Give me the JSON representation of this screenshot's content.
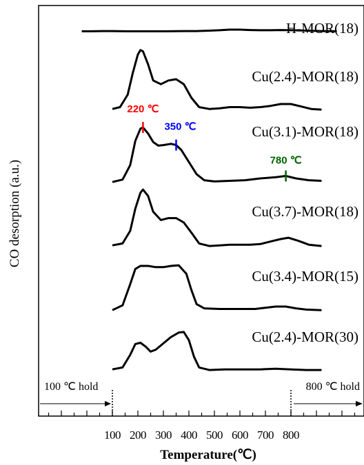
{
  "chart_data": {
    "type": "line",
    "title": "",
    "xlabel": "Temperature(℃)",
    "ylabel": "CO desorption (a.u.)",
    "x_ticks": [
      "100",
      "200",
      "300",
      "400",
      "500",
      "600",
      "700",
      "800"
    ],
    "y_ticks": [],
    "grid": false,
    "legend": "none",
    "series": [
      {
        "name": "H-MOR(18)",
        "color": "#000000",
        "points": [
          [
            -20,
            0.02
          ],
          [
            20,
            0.02
          ],
          [
            60,
            0.03
          ],
          [
            100,
            0.03
          ],
          [
            150,
            0.02
          ],
          [
            200,
            0.02
          ],
          [
            260,
            0.02
          ],
          [
            320,
            0.02
          ],
          [
            380,
            0.03
          ],
          [
            430,
            0.03
          ],
          [
            480,
            0.05
          ],
          [
            520,
            0.07
          ],
          [
            560,
            0.1
          ],
          [
            600,
            0.1
          ],
          [
            640,
            0.08
          ],
          [
            680,
            0.07
          ],
          [
            720,
            0.07
          ],
          [
            760,
            0.08
          ],
          [
            800,
            0.07
          ],
          [
            840,
            0.06
          ],
          [
            880,
            0.04
          ],
          [
            920,
            0.03
          ],
          [
            980,
            0.02
          ]
        ]
      },
      {
        "name": "Cu(2.4)-MOR(18)",
        "color": "#000000",
        "points": [
          [
            100,
            0.02
          ],
          [
            130,
            0.05
          ],
          [
            160,
            0.25
          ],
          [
            180,
            0.6
          ],
          [
            200,
            0.9
          ],
          [
            210,
            0.97
          ],
          [
            220,
            0.95
          ],
          [
            240,
            0.74
          ],
          [
            260,
            0.48
          ],
          [
            290,
            0.42
          ],
          [
            320,
            0.48
          ],
          [
            350,
            0.5
          ],
          [
            380,
            0.42
          ],
          [
            410,
            0.2
          ],
          [
            440,
            0.05
          ],
          [
            480,
            0.02
          ],
          [
            520,
            0.03
          ],
          [
            560,
            0.05
          ],
          [
            600,
            0.05
          ],
          [
            640,
            0.04
          ],
          [
            680,
            0.05
          ],
          [
            720,
            0.07
          ],
          [
            760,
            0.1
          ],
          [
            800,
            0.1
          ],
          [
            840,
            0.06
          ],
          [
            880,
            0.02
          ],
          [
            920,
            0.01
          ]
        ]
      },
      {
        "name": "Cu(3.1)-MOR(18)",
        "color": "#000000",
        "points": [
          [
            100,
            0.02
          ],
          [
            140,
            0.06
          ],
          [
            170,
            0.3
          ],
          [
            190,
            0.7
          ],
          [
            210,
            0.9
          ],
          [
            220,
            0.92
          ],
          [
            240,
            0.82
          ],
          [
            260,
            0.68
          ],
          [
            280,
            0.62
          ],
          [
            300,
            0.63
          ],
          [
            330,
            0.65
          ],
          [
            350,
            0.63
          ],
          [
            370,
            0.55
          ],
          [
            400,
            0.35
          ],
          [
            430,
            0.15
          ],
          [
            460,
            0.05
          ],
          [
            500,
            0.03
          ],
          [
            560,
            0.04
          ],
          [
            620,
            0.05
          ],
          [
            680,
            0.08
          ],
          [
            740,
            0.1
          ],
          [
            780,
            0.12
          ],
          [
            820,
            0.08
          ],
          [
            870,
            0.05
          ],
          [
            920,
            0.04
          ]
        ]
      },
      {
        "name": "Cu(3.7)-MOR(18)",
        "color": "#000000",
        "points": [
          [
            100,
            0.02
          ],
          [
            140,
            0.05
          ],
          [
            170,
            0.25
          ],
          [
            190,
            0.6
          ],
          [
            210,
            0.85
          ],
          [
            220,
            0.9
          ],
          [
            240,
            0.8
          ],
          [
            260,
            0.55
          ],
          [
            290,
            0.42
          ],
          [
            320,
            0.45
          ],
          [
            350,
            0.45
          ],
          [
            380,
            0.38
          ],
          [
            410,
            0.22
          ],
          [
            440,
            0.05
          ],
          [
            480,
            0.01
          ],
          [
            520,
            0.02
          ],
          [
            560,
            0.03
          ],
          [
            600,
            0.03
          ],
          [
            640,
            0.03
          ],
          [
            680,
            0.04
          ],
          [
            720,
            0.08
          ],
          [
            760,
            0.12
          ],
          [
            790,
            0.14
          ],
          [
            830,
            0.09
          ],
          [
            870,
            0.03
          ],
          [
            920,
            0.01
          ]
        ]
      },
      {
        "name": "Cu(3.4)-MOR(15)",
        "color": "#000000",
        "points": [
          [
            100,
            0.02
          ],
          [
            140,
            0.1
          ],
          [
            170,
            0.45
          ],
          [
            190,
            0.7
          ],
          [
            210,
            0.75
          ],
          [
            240,
            0.75
          ],
          [
            270,
            0.73
          ],
          [
            300,
            0.73
          ],
          [
            330,
            0.75
          ],
          [
            360,
            0.76
          ],
          [
            390,
            0.62
          ],
          [
            410,
            0.35
          ],
          [
            430,
            0.12
          ],
          [
            460,
            0.05
          ],
          [
            520,
            0.04
          ],
          [
            600,
            0.04
          ],
          [
            660,
            0.04
          ],
          [
            700,
            0.06
          ],
          [
            740,
            0.08
          ],
          [
            780,
            0.08
          ],
          [
            820,
            0.05
          ],
          [
            860,
            0.03
          ],
          [
            920,
            0.02
          ]
        ]
      },
      {
        "name": "Cu(2.4)-MOR(30)",
        "color": "#000000",
        "points": [
          [
            100,
            0.02
          ],
          [
            140,
            0.05
          ],
          [
            170,
            0.25
          ],
          [
            190,
            0.42
          ],
          [
            210,
            0.44
          ],
          [
            230,
            0.38
          ],
          [
            250,
            0.3
          ],
          [
            270,
            0.33
          ],
          [
            300,
            0.43
          ],
          [
            330,
            0.53
          ],
          [
            360,
            0.6
          ],
          [
            380,
            0.61
          ],
          [
            400,
            0.48
          ],
          [
            420,
            0.22
          ],
          [
            440,
            0.05
          ],
          [
            480,
            0.01
          ],
          [
            540,
            0.02
          ],
          [
            600,
            0.02
          ],
          [
            680,
            0.02
          ],
          [
            740,
            0.03
          ],
          [
            800,
            0.02
          ],
          [
            860,
            0.01
          ],
          [
            920,
            0.01
          ]
        ]
      }
    ],
    "annotations": [
      {
        "label": "220 ℃",
        "x": 220,
        "series": "Cu(3.1)-MOR(18)",
        "color": "#ff0000"
      },
      {
        "label": "350 ℃",
        "x": 350,
        "series": "Cu(3.1)-MOR(18)",
        "color": "#0000ff"
      },
      {
        "label": "780 ℃",
        "x": 780,
        "series": "Cu(3.1)-MOR(18)",
        "color": "#006400"
      }
    ],
    "holds": [
      {
        "label": "100 ℃ hold",
        "x": 100,
        "direction": "left"
      },
      {
        "label": "800 ℃ hold",
        "x": 800,
        "direction": "right"
      }
    ]
  }
}
